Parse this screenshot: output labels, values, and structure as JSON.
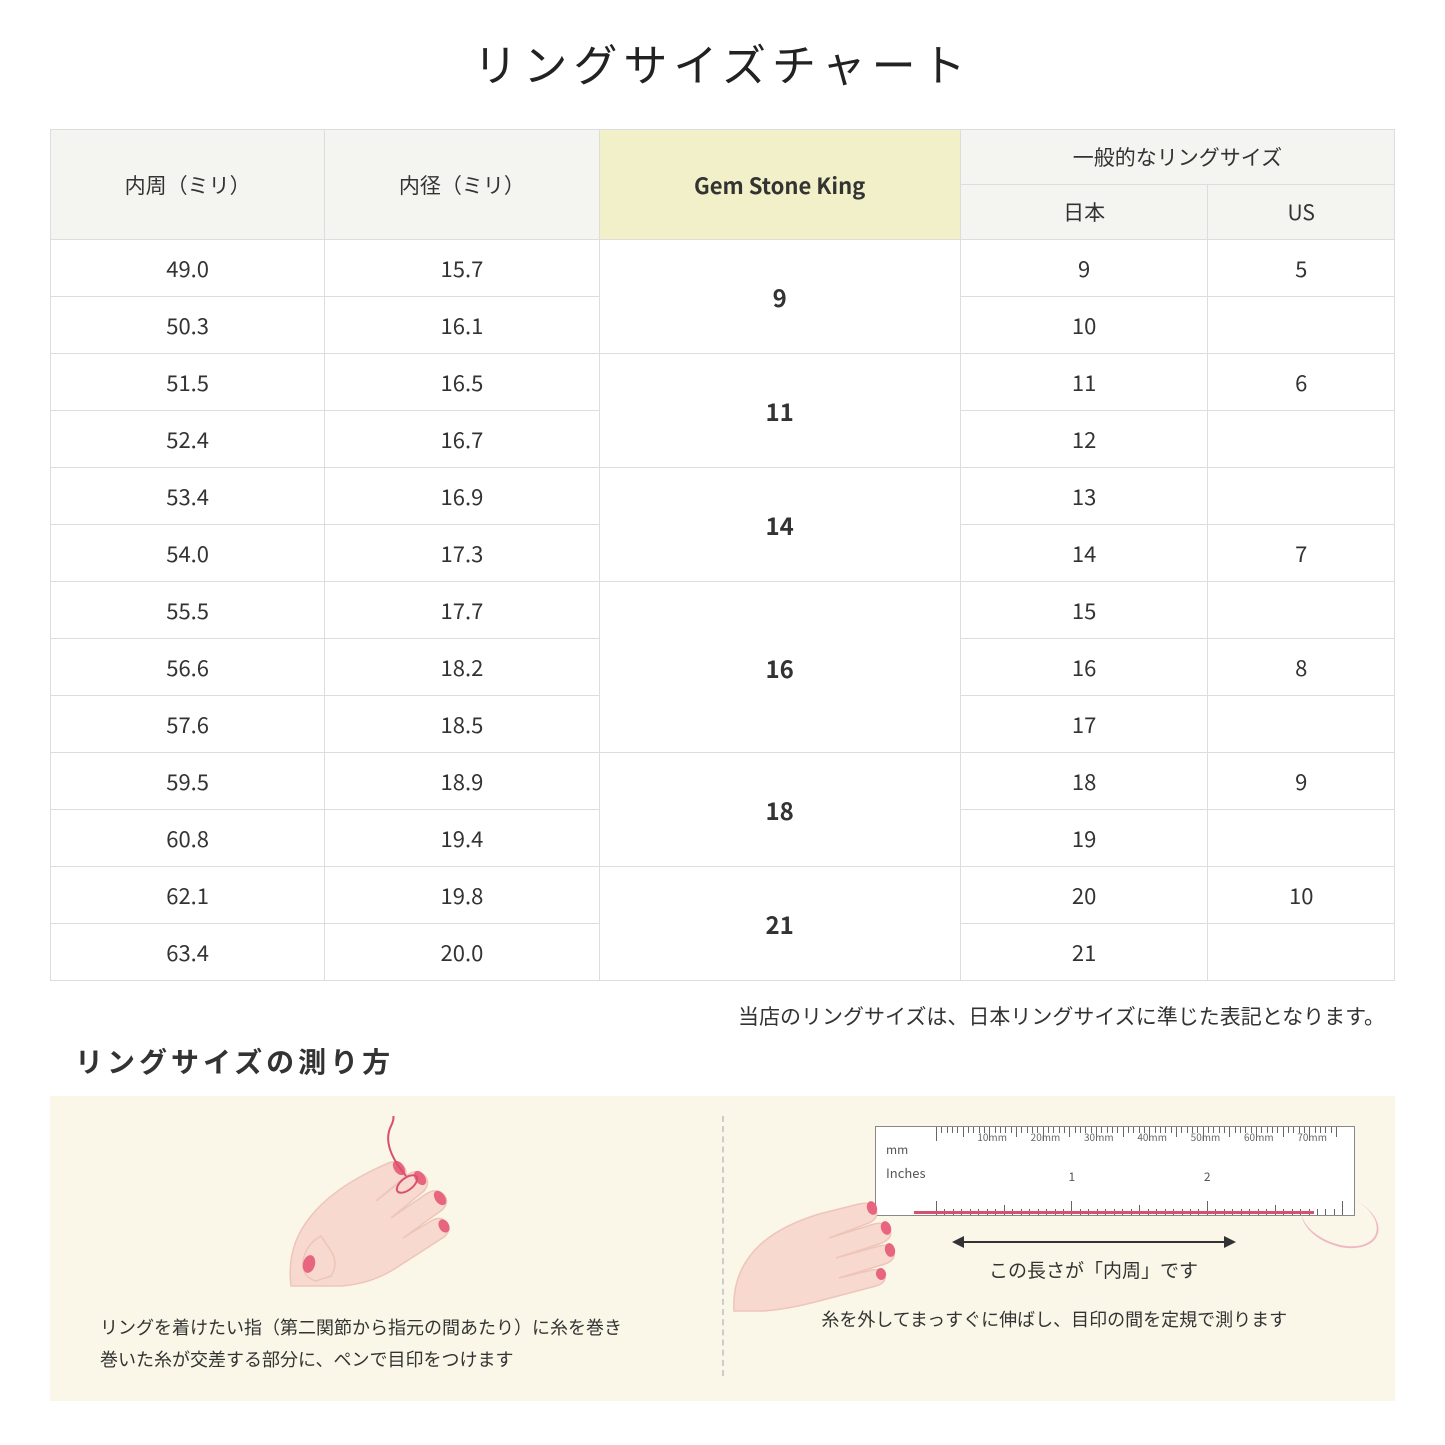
{
  "title": "リングサイズチャート",
  "headers": {
    "circumference": "内周（ミリ）",
    "diameter": "内径（ミリ）",
    "gsk": "Gem Stone King",
    "general": "一般的なリングサイズ",
    "japan": "日本",
    "us": "US"
  },
  "rows": [
    {
      "circ": "49.0",
      "dia": "15.7",
      "jp": "9",
      "us": "5"
    },
    {
      "circ": "50.3",
      "dia": "16.1",
      "jp": "10",
      "us": ""
    },
    {
      "circ": "51.5",
      "dia": "16.5",
      "jp": "11",
      "us": "6"
    },
    {
      "circ": "52.4",
      "dia": "16.7",
      "jp": "12",
      "us": ""
    },
    {
      "circ": "53.4",
      "dia": "16.9",
      "jp": "13",
      "us": ""
    },
    {
      "circ": "54.0",
      "dia": "17.3",
      "jp": "14",
      "us": "7"
    },
    {
      "circ": "55.5",
      "dia": "17.7",
      "jp": "15",
      "us": ""
    },
    {
      "circ": "56.6",
      "dia": "18.2",
      "jp": "16",
      "us": "8"
    },
    {
      "circ": "57.6",
      "dia": "18.5",
      "jp": "17",
      "us": ""
    },
    {
      "circ": "59.5",
      "dia": "18.9",
      "jp": "18",
      "us": "9"
    },
    {
      "circ": "60.8",
      "dia": "19.4",
      "jp": "19",
      "us": ""
    },
    {
      "circ": "62.1",
      "dia": "19.8",
      "jp": "20",
      "us": "10"
    },
    {
      "circ": "63.4",
      "dia": "20.0",
      "jp": "21",
      "us": ""
    }
  ],
  "gsk_groups": [
    {
      "value": "9",
      "span": 2
    },
    {
      "value": "11",
      "span": 2
    },
    {
      "value": "14",
      "span": 2
    },
    {
      "value": "16",
      "span": 3
    },
    {
      "value": "18",
      "span": 2
    },
    {
      "value": "21",
      "span": 2
    }
  ],
  "note": "当店のリングサイズは、日本リングサイズに準じた表記となります。",
  "subtitle": "リングサイズの測り方",
  "guide": {
    "left_text": "リングを着けたい指（第二関節から指元の間あたり）に糸を巻き\n巻いた糸が交差する部分に、ペンで目印をつけます",
    "right_text": "糸を外してまっすぐに伸ばし、目印の間を定規で測ります",
    "arrow_caption": "この長さが「内周」です",
    "ruler_mm": "mm",
    "ruler_inches": "Inches",
    "ruler_mm_labels": [
      "10mm",
      "20mm",
      "30mm",
      "40mm",
      "50mm",
      "60mm",
      "70mm"
    ],
    "ruler_in_labels": [
      "1",
      "2"
    ]
  },
  "colors": {
    "header_bg": "#f4f4f0",
    "highlight_bg": "#f2f0c8",
    "border": "#dddddd",
    "guide_bg": "#faf7e8",
    "skin": "#f7d9cf",
    "skin_dark": "#eec5b8",
    "nail": "#e8657f",
    "thread": "#d94f6f"
  }
}
